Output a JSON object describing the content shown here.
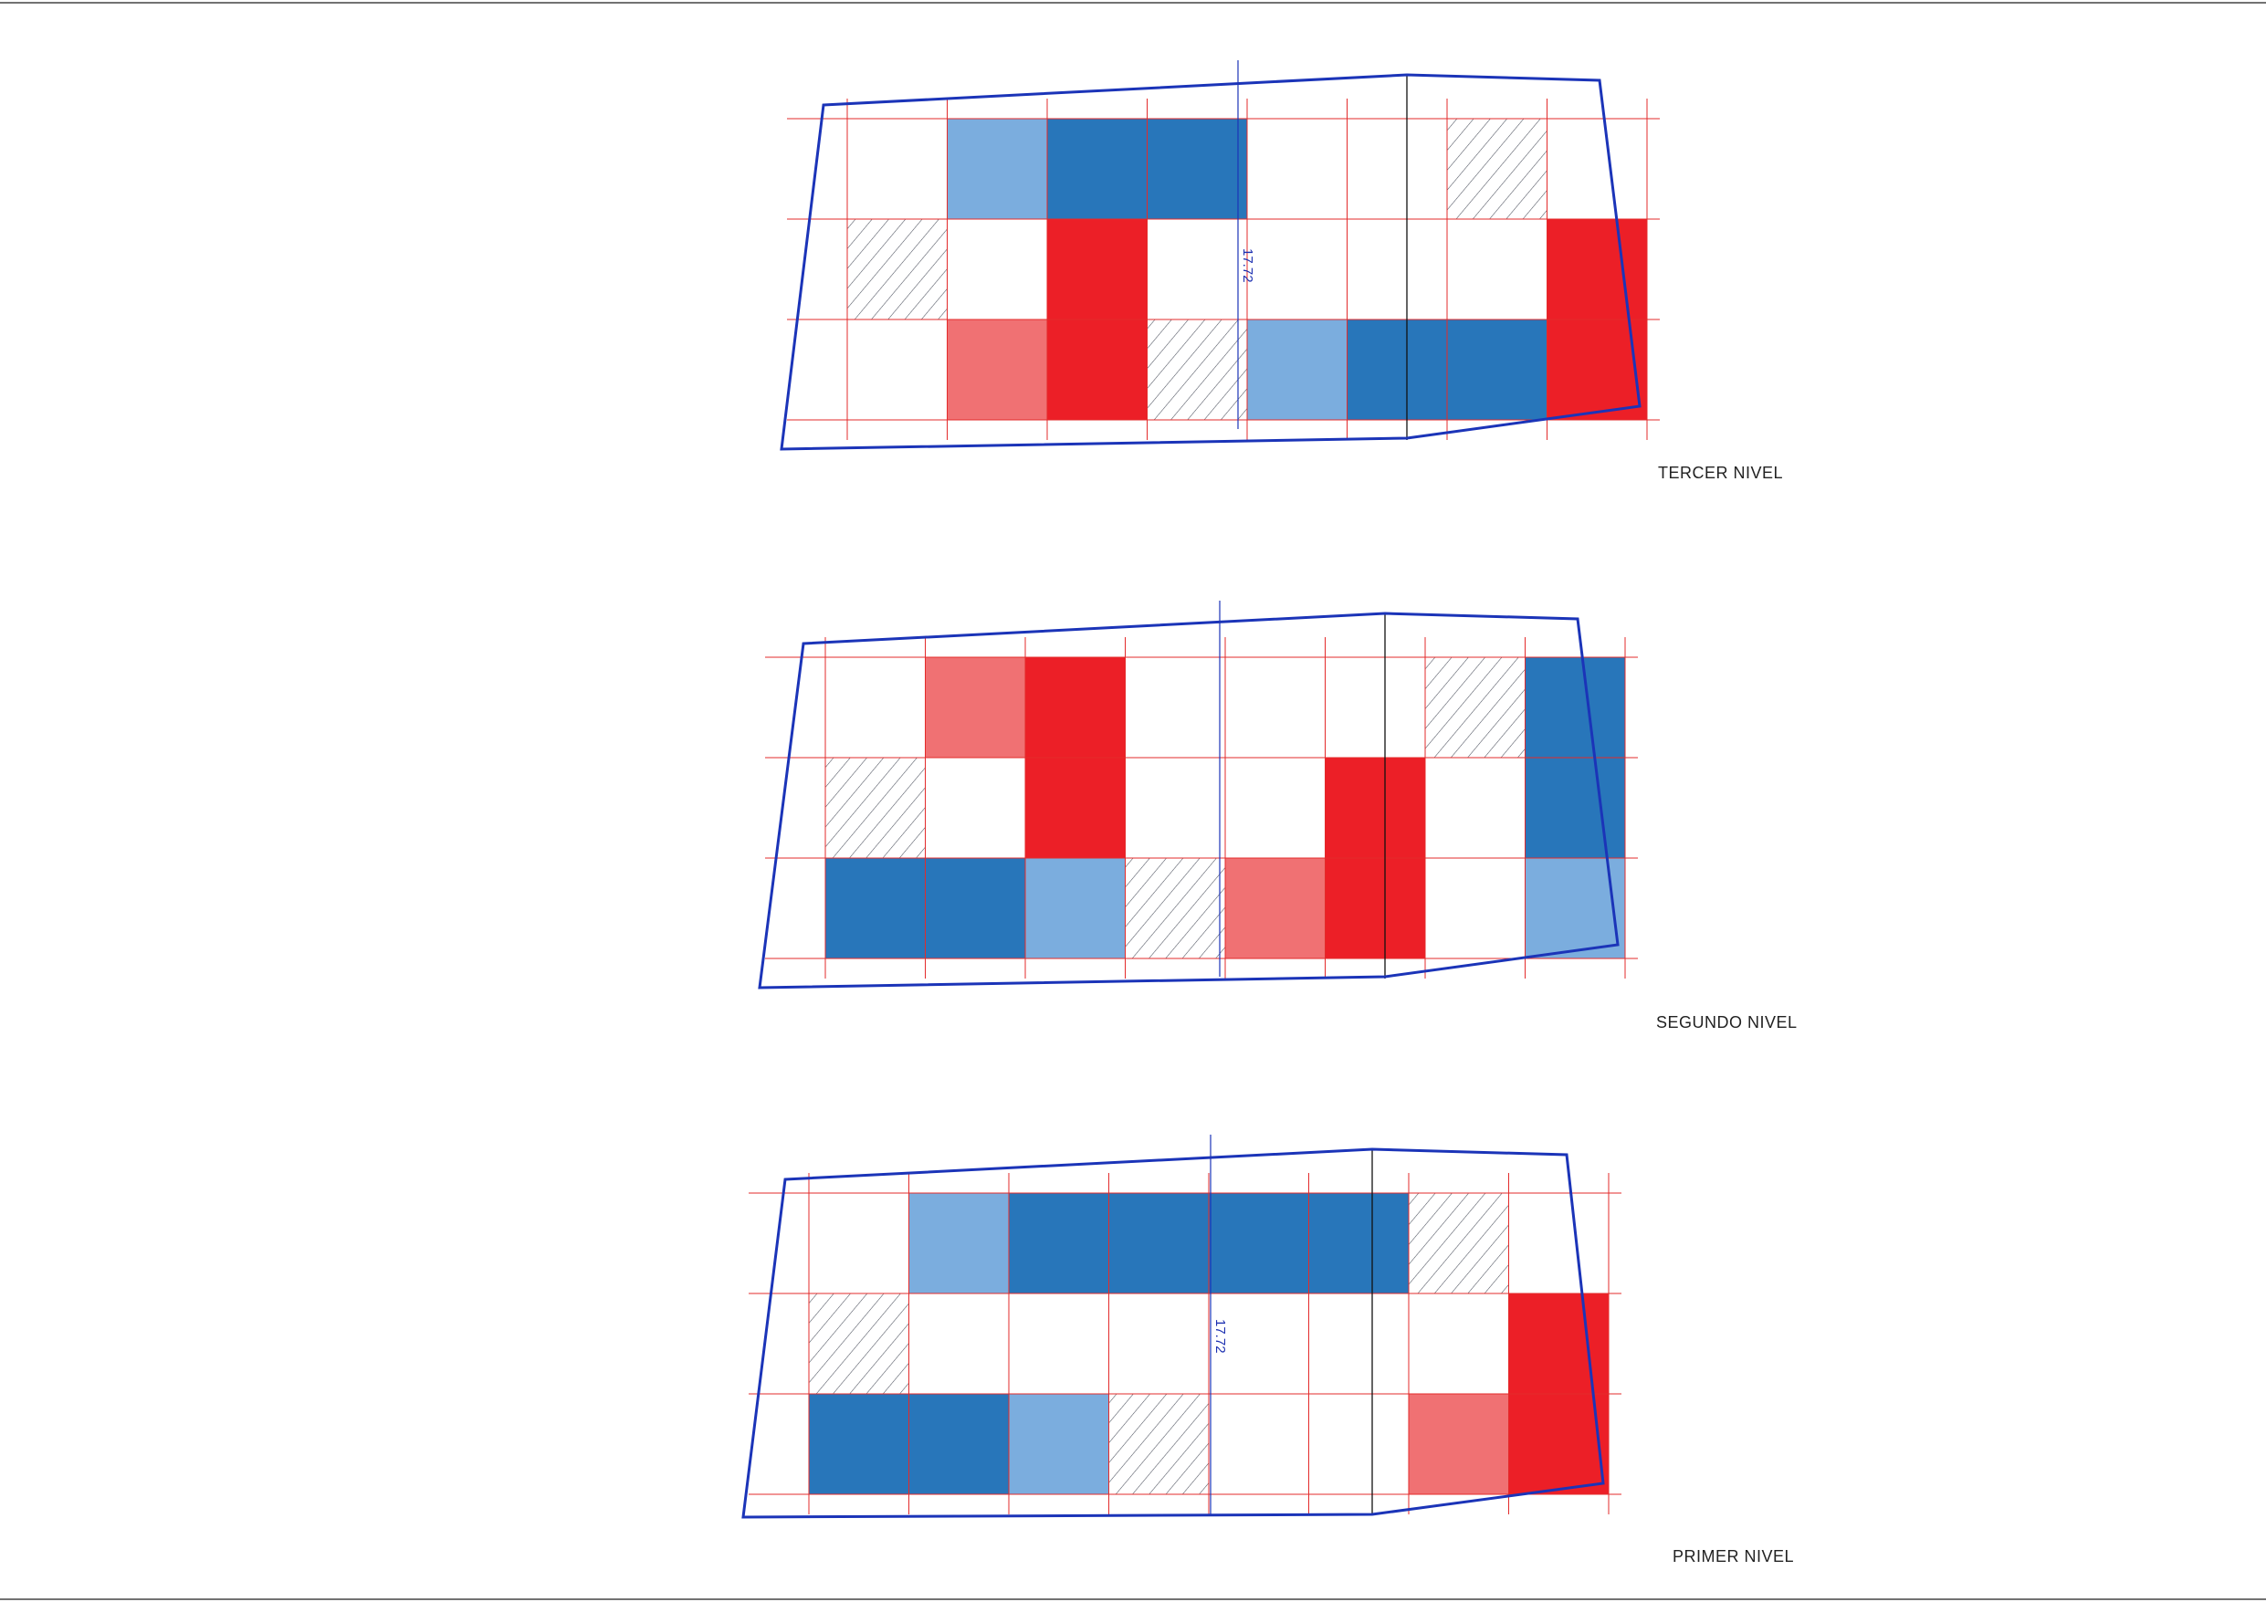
{
  "sheet": {
    "levels": [
      {
        "id": "tercer",
        "label": "TERCER NIVEL",
        "dimension": "17.72",
        "rows": [
          [
            "empty",
            "light-blue",
            "dark-blue",
            "dark-blue",
            "empty",
            "empty",
            "hatch",
            "empty"
          ],
          [
            "hatch",
            "empty",
            "red",
            "empty",
            "empty",
            "empty",
            "empty",
            "red"
          ],
          [
            "empty",
            "light-red",
            "red",
            "hatch",
            "light-blue",
            "dark-blue",
            "dark-blue",
            "red"
          ]
        ]
      },
      {
        "id": "segundo",
        "label": "SEGUNDO NIVEL",
        "dimension": "",
        "rows": [
          [
            "empty",
            "light-red",
            "red",
            "empty",
            "empty",
            "empty",
            "hatch",
            "dark-blue"
          ],
          [
            "hatch",
            "empty",
            "red",
            "empty",
            "empty",
            "red",
            "empty",
            "dark-blue"
          ],
          [
            "dark-blue",
            "dark-blue",
            "light-blue",
            "hatch",
            "light-red",
            "red",
            "empty",
            "light-blue"
          ]
        ]
      },
      {
        "id": "primer",
        "label": "PRIMER NIVEL",
        "dimension": "17.72",
        "rows": [
          [
            "empty",
            "light-blue",
            "dark-blue",
            "dark-blue",
            "dark-blue",
            "dark-blue",
            "hatch",
            "empty"
          ],
          [
            "hatch",
            "empty",
            "empty",
            "empty",
            "empty",
            "empty",
            "empty",
            "red"
          ],
          [
            "dark-blue",
            "dark-blue",
            "light-blue",
            "hatch",
            "empty",
            "empty",
            "light-red",
            "red"
          ]
        ]
      }
    ],
    "colors": {
      "dark-blue": "#2876BA",
      "light-blue": "#7BADDE",
      "red": "#EC1F27",
      "light-red": "#F07173",
      "hatch-line": "#4a4f5c",
      "outline": "#1B34B8",
      "grid": "#E32B2B",
      "divider": "#111111"
    }
  }
}
